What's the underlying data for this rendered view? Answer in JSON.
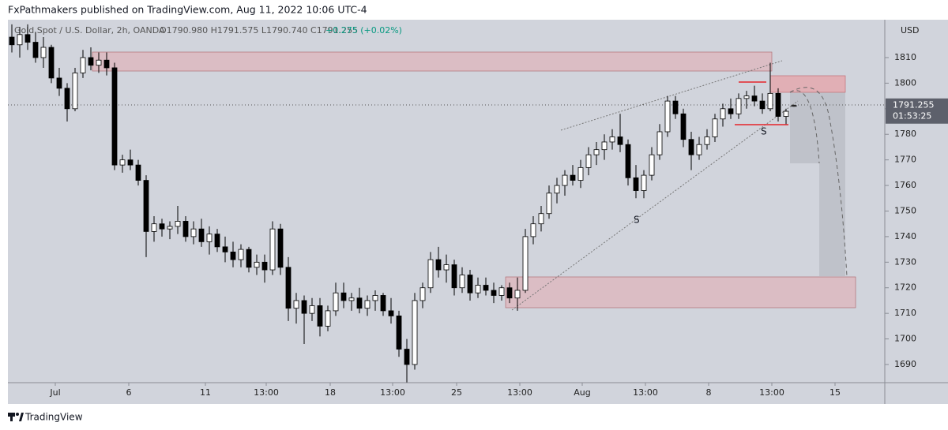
{
  "header": "FxPathmakers published on TradingView.com, Aug 11, 2022 10:06 UTC-4",
  "footer": "TradingView",
  "chart_data": {
    "type": "candlestick",
    "symbol": "Gold Spot / U.S. Dollar, 2h, OANDA",
    "ohlc_text": "O1790.980 H1791.575 L1790.740 C1791.255",
    "change_text": "+0.275 (+0.02%)",
    "currency": "USD",
    "price_label": "1791.255",
    "countdown": "01:53:25",
    "annotations": [
      "S",
      "S"
    ],
    "up_color": "#ffffff",
    "down_color": "#000000",
    "grid": false,
    "ylim": [
      1682.9,
      1824.8
    ],
    "yticks": [
      1690,
      1700,
      1710,
      1720,
      1730,
      1740,
      1750,
      1760,
      1770,
      1780,
      1790,
      1800,
      1810
    ],
    "xlim": [
      0,
      111
    ],
    "xticks": [
      {
        "value": 6,
        "label": "Jul"
      },
      {
        "value": 15.3,
        "label": "6"
      },
      {
        "value": 25,
        "label": "11"
      },
      {
        "value": 32.7,
        "label": "13:00"
      },
      {
        "value": 40.8,
        "label": "18"
      },
      {
        "value": 48.7,
        "label": "13:00"
      },
      {
        "value": 56.8,
        "label": "25"
      },
      {
        "value": 64.8,
        "label": "13:00"
      },
      {
        "value": 72.7,
        "label": "Aug"
      },
      {
        "value": 80.7,
        "label": "13:00"
      },
      {
        "value": 88.7,
        "label": "8"
      },
      {
        "value": 96.7,
        "label": "13:00"
      },
      {
        "value": 104.7,
        "label": "15"
      }
    ],
    "candles": [
      [
        1818,
        1823,
        1812,
        1815
      ],
      [
        1815,
        1822,
        1810,
        1819
      ],
      [
        1819,
        1823,
        1813,
        1816
      ],
      [
        1816,
        1820,
        1808,
        1810
      ],
      [
        1810,
        1818,
        1806,
        1814
      ],
      [
        1814,
        1815,
        1800,
        1802
      ],
      [
        1802,
        1806,
        1795,
        1798
      ],
      [
        1798,
        1800,
        1785,
        1790
      ],
      [
        1790,
        1806,
        1789,
        1804
      ],
      [
        1804,
        1813,
        1802,
        1810
      ],
      [
        1810,
        1814,
        1805,
        1807
      ],
      [
        1807,
        1812,
        1804,
        1809
      ],
      [
        1809,
        1812,
        1803,
        1806
      ],
      [
        1806,
        1808,
        1766,
        1768
      ],
      [
        1768,
        1772,
        1765,
        1770
      ],
      [
        1770,
        1774,
        1766,
        1768
      ],
      [
        1768,
        1770,
        1760,
        1762
      ],
      [
        1762,
        1764,
        1732,
        1742
      ],
      [
        1742,
        1748,
        1738,
        1745
      ],
      [
        1745,
        1747,
        1740,
        1743
      ],
      [
        1743,
        1746,
        1739,
        1744
      ],
      [
        1744,
        1752,
        1741,
        1746
      ],
      [
        1746,
        1748,
        1738,
        1740
      ],
      [
        1740,
        1746,
        1737,
        1743
      ],
      [
        1743,
        1747,
        1736,
        1738
      ],
      [
        1738,
        1744,
        1733,
        1741
      ],
      [
        1741,
        1743,
        1734,
        1736
      ],
      [
        1736,
        1740,
        1730,
        1734
      ],
      [
        1734,
        1738,
        1728,
        1731
      ],
      [
        1731,
        1737,
        1728,
        1735
      ],
      [
        1735,
        1736,
        1726,
        1728
      ],
      [
        1728,
        1733,
        1725,
        1730
      ],
      [
        1730,
        1733,
        1722,
        1727
      ],
      [
        1727,
        1746,
        1725,
        1743
      ],
      [
        1743,
        1745,
        1725,
        1728
      ],
      [
        1728,
        1732,
        1707,
        1712
      ],
      [
        1712,
        1718,
        1706,
        1715
      ],
      [
        1715,
        1717,
        1698,
        1710
      ],
      [
        1710,
        1716,
        1707,
        1713
      ],
      [
        1713,
        1716,
        1701,
        1705
      ],
      [
        1705,
        1713,
        1703,
        1711
      ],
      [
        1711,
        1722,
        1709,
        1718
      ],
      [
        1718,
        1722,
        1712,
        1715
      ],
      [
        1715,
        1718,
        1711,
        1716
      ],
      [
        1716,
        1720,
        1710,
        1712
      ],
      [
        1712,
        1717,
        1709,
        1715
      ],
      [
        1715,
        1719,
        1711,
        1717
      ],
      [
        1717,
        1718,
        1709,
        1711
      ],
      [
        1711,
        1716,
        1706,
        1709
      ],
      [
        1709,
        1711,
        1693,
        1696
      ],
      [
        1696,
        1700,
        1683,
        1690
      ],
      [
        1690,
        1718,
        1688,
        1715
      ],
      [
        1715,
        1722,
        1712,
        1720
      ],
      [
        1720,
        1734,
        1718,
        1731
      ],
      [
        1731,
        1736,
        1724,
        1727
      ],
      [
        1727,
        1733,
        1722,
        1729
      ],
      [
        1729,
        1731,
        1717,
        1720
      ],
      [
        1720,
        1728,
        1718,
        1725
      ],
      [
        1725,
        1727,
        1715,
        1718
      ],
      [
        1718,
        1724,
        1716,
        1721
      ],
      [
        1721,
        1724,
        1717,
        1719
      ],
      [
        1719,
        1722,
        1714,
        1717
      ],
      [
        1717,
        1721,
        1715,
        1720
      ],
      [
        1720,
        1722,
        1714,
        1716
      ],
      [
        1716,
        1724,
        1711,
        1719
      ],
      [
        1719,
        1743,
        1718,
        1740
      ],
      [
        1740,
        1748,
        1737,
        1745
      ],
      [
        1745,
        1752,
        1742,
        1749
      ],
      [
        1749,
        1760,
        1747,
        1757
      ],
      [
        1757,
        1763,
        1753,
        1760
      ],
      [
        1760,
        1766,
        1756,
        1764
      ],
      [
        1764,
        1768,
        1760,
        1762
      ],
      [
        1762,
        1770,
        1759,
        1767
      ],
      [
        1767,
        1775,
        1764,
        1772
      ],
      [
        1772,
        1777,
        1768,
        1774
      ],
      [
        1774,
        1780,
        1770,
        1777
      ],
      [
        1777,
        1782,
        1774,
        1779
      ],
      [
        1779,
        1788,
        1773,
        1776
      ],
      [
        1776,
        1778,
        1760,
        1763
      ],
      [
        1763,
        1768,
        1755,
        1758
      ],
      [
        1758,
        1766,
        1755,
        1764
      ],
      [
        1764,
        1775,
        1762,
        1772
      ],
      [
        1772,
        1784,
        1770,
        1781
      ],
      [
        1781,
        1795,
        1779,
        1793
      ],
      [
        1793,
        1795,
        1786,
        1788
      ],
      [
        1788,
        1790,
        1775,
        1778
      ],
      [
        1778,
        1781,
        1766,
        1772
      ],
      [
        1772,
        1779,
        1770,
        1776
      ],
      [
        1776,
        1782,
        1774,
        1779
      ],
      [
        1779,
        1788,
        1777,
        1786
      ],
      [
        1786,
        1792,
        1783,
        1790
      ],
      [
        1790,
        1794,
        1786,
        1788
      ],
      [
        1788,
        1796,
        1786,
        1794
      ],
      [
        1794,
        1797,
        1790,
        1795
      ],
      [
        1795,
        1799,
        1791,
        1793
      ],
      [
        1793,
        1796,
        1788,
        1790
      ],
      [
        1790,
        1808,
        1789,
        1796
      ],
      [
        1796,
        1798,
        1785,
        1787
      ],
      [
        1787,
        1790,
        1784,
        1789
      ],
      [
        1790.98,
        1791.575,
        1790.74,
        1791.255
      ]
    ]
  }
}
